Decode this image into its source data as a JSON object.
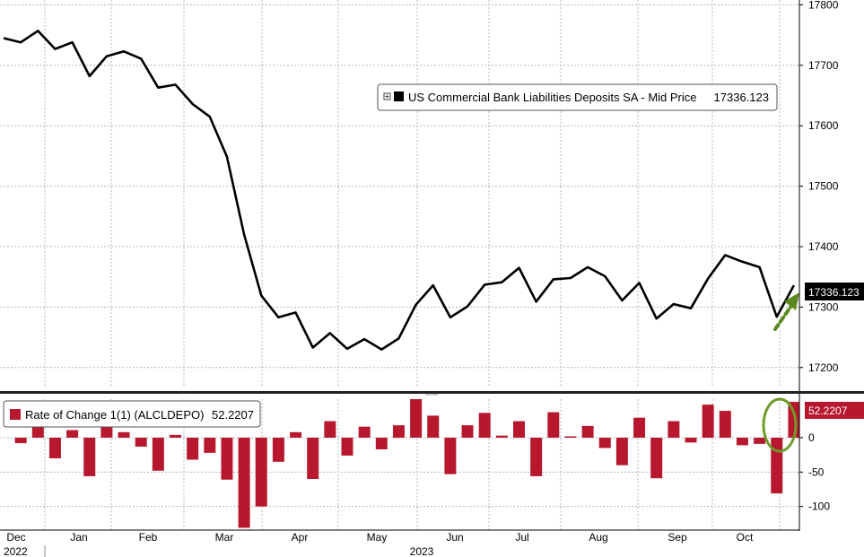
{
  "chart_data": [
    {
      "type": "line",
      "series": [
        {
          "name": "US Commercial Bank Liabilities Deposits SA - Mid Price",
          "last_value_label": "17336.123",
          "color": "#000000",
          "values": [
            17745,
            17738,
            17757,
            17727,
            17738,
            17682,
            17715,
            17723,
            17711,
            17663,
            17668,
            17636,
            17615,
            17549,
            17420,
            17319,
            17283,
            17291,
            17233,
            17257,
            17231,
            17247,
            17230,
            17248,
            17304,
            17336,
            17283,
            17301,
            17337,
            17341,
            17365,
            17309,
            17346,
            17348,
            17366,
            17351,
            17311,
            17340,
            17281,
            17305,
            17298,
            17347,
            17386,
            17375,
            17366,
            17284,
            17336
          ]
        }
      ],
      "y_axis": {
        "ticks": [
          17800,
          17700,
          17600,
          17500,
          17400,
          17300,
          17200
        ],
        "ylim": [
          17170,
          17808
        ],
        "side": "right"
      },
      "grid": true,
      "legend": "top-right",
      "last_value_badge": "17336.123",
      "annotation": "green dashed arrow pointing to last value"
    },
    {
      "type": "bar",
      "series": [
        {
          "name": "Rate of Change 1(1) (ALCLDEPO)",
          "last_value_label": "52.2207",
          "color": "#b8182e",
          "values": [
            -8,
            19,
            -30,
            11,
            -56,
            20,
            8,
            -13,
            -48,
            4,
            -32,
            -22,
            -61,
            -131,
            -100,
            -35,
            8,
            -60,
            24,
            -26,
            16,
            -17,
            18,
            56,
            32,
            -53,
            18,
            36,
            3,
            24,
            -56,
            37,
            2,
            17,
            -15,
            -40,
            29,
            -59,
            24,
            -7,
            48,
            39,
            -11,
            -9,
            -81,
            52
          ]
        }
      ],
      "y_axis": {
        "ticks": [
          0,
          -50,
          -100
        ],
        "ylim": [
          -133,
          56
        ],
        "side": "right"
      },
      "grid": true,
      "legend": "top-left",
      "last_value_badge": "52.2207",
      "annotation": "green ellipse around last bar"
    }
  ],
  "x_axis": {
    "months": [
      "Dec",
      "Jan",
      "Feb",
      "Mar",
      "Apr",
      "May",
      "Jun",
      "Jul",
      "Aug",
      "Sep",
      "Oct"
    ],
    "years": [
      "2022",
      "2023"
    ]
  },
  "colors": {
    "line": "#000000",
    "bar": "#b8182e",
    "grid": "#b0b8c4",
    "annotation": "#5a8a1e",
    "divider": "#222222"
  }
}
